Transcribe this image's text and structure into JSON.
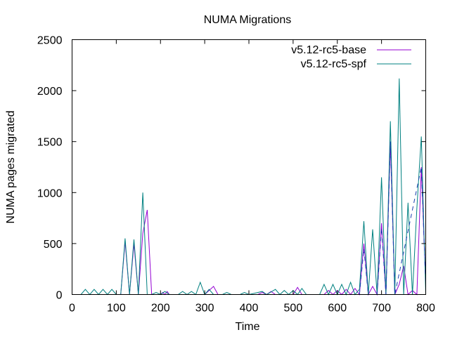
{
  "chart_data": {
    "type": "line",
    "title": "NUMA Migrations",
    "xlabel": "Time",
    "ylabel": "NUMA pages migrated",
    "xlim": [
      0,
      800
    ],
    "ylim": [
      0,
      2500
    ],
    "xticks": [
      0,
      100,
      200,
      300,
      400,
      500,
      600,
      700,
      800
    ],
    "yticks": [
      0,
      500,
      1000,
      1500,
      2000,
      2500
    ],
    "grid": false,
    "legend_position": "top-right",
    "series": [
      {
        "name": "v5.12-rc5-base",
        "color": "#9400d3",
        "dash": "solid",
        "points": [
          [
            0,
            0
          ],
          [
            110,
            0
          ],
          [
            120,
            520
          ],
          [
            130,
            0
          ],
          [
            140,
            500
          ],
          [
            150,
            0
          ],
          [
            160,
            600
          ],
          [
            170,
            830
          ],
          [
            180,
            0
          ],
          [
            200,
            0
          ],
          [
            205,
            20
          ],
          [
            210,
            0
          ],
          [
            215,
            30
          ],
          [
            220,
            0
          ],
          [
            300,
            0
          ],
          [
            320,
            80
          ],
          [
            330,
            0
          ],
          [
            420,
            0
          ],
          [
            430,
            20
          ],
          [
            440,
            0
          ],
          [
            450,
            30
          ],
          [
            460,
            0
          ],
          [
            500,
            0
          ],
          [
            510,
            70
          ],
          [
            520,
            0
          ],
          [
            570,
            0
          ],
          [
            580,
            40
          ],
          [
            590,
            0
          ],
          [
            600,
            40
          ],
          [
            610,
            0
          ],
          [
            620,
            50
          ],
          [
            630,
            0
          ],
          [
            640,
            60
          ],
          [
            650,
            0
          ],
          [
            660,
            500
          ],
          [
            670,
            0
          ],
          [
            680,
            80
          ],
          [
            690,
            0
          ],
          [
            700,
            700
          ],
          [
            710,
            0
          ],
          [
            720,
            1500
          ],
          [
            730,
            0
          ],
          [
            740,
            100
          ],
          [
            750,
            280
          ],
          [
            760,
            0
          ],
          [
            770,
            40
          ],
          [
            780,
            0
          ],
          [
            790,
            1250
          ],
          [
            800,
            100
          ]
        ]
      },
      {
        "name": "v5.12-rc5-spf",
        "color": "#008080",
        "dash": "solid",
        "points": [
          [
            0,
            0
          ],
          [
            20,
            0
          ],
          [
            30,
            50
          ],
          [
            40,
            0
          ],
          [
            50,
            50
          ],
          [
            60,
            0
          ],
          [
            70,
            50
          ],
          [
            80,
            0
          ],
          [
            90,
            50
          ],
          [
            100,
            0
          ],
          [
            110,
            0
          ],
          [
            120,
            550
          ],
          [
            130,
            0
          ],
          [
            140,
            540
          ],
          [
            150,
            0
          ],
          [
            160,
            1000
          ],
          [
            170,
            0
          ],
          [
            180,
            0
          ],
          [
            190,
            20
          ],
          [
            200,
            0
          ],
          [
            210,
            30
          ],
          [
            220,
            0
          ],
          [
            240,
            0
          ],
          [
            250,
            30
          ],
          [
            260,
            0
          ],
          [
            270,
            30
          ],
          [
            280,
            0
          ],
          [
            290,
            120
          ],
          [
            300,
            0
          ],
          [
            310,
            50
          ],
          [
            320,
            0
          ],
          [
            340,
            0
          ],
          [
            350,
            20
          ],
          [
            360,
            0
          ],
          [
            380,
            0
          ],
          [
            390,
            20
          ],
          [
            400,
            0
          ],
          [
            420,
            20
          ],
          [
            430,
            30
          ],
          [
            440,
            0
          ],
          [
            460,
            50
          ],
          [
            470,
            0
          ],
          [
            480,
            40
          ],
          [
            490,
            0
          ],
          [
            500,
            40
          ],
          [
            510,
            0
          ],
          [
            520,
            60
          ],
          [
            530,
            0
          ],
          [
            560,
            0
          ],
          [
            570,
            100
          ],
          [
            580,
            0
          ],
          [
            590,
            100
          ],
          [
            600,
            0
          ],
          [
            610,
            100
          ],
          [
            620,
            0
          ],
          [
            630,
            120
          ],
          [
            640,
            0
          ],
          [
            650,
            50
          ],
          [
            660,
            720
          ],
          [
            670,
            0
          ],
          [
            680,
            640
          ],
          [
            690,
            0
          ],
          [
            700,
            1150
          ],
          [
            710,
            0
          ],
          [
            720,
            1700
          ],
          [
            730,
            0
          ],
          [
            740,
            2120
          ],
          [
            750,
            0
          ],
          [
            760,
            900
          ],
          [
            770,
            0
          ],
          [
            780,
            850
          ],
          [
            790,
            1550
          ],
          [
            800,
            0
          ]
        ]
      },
      {
        "name": "",
        "color": "#1a3eb0",
        "dash": "dashed",
        "points": [
          [
            650,
            0
          ],
          [
            660,
            450
          ],
          [
            670,
            0
          ],
          [
            680,
            0
          ],
          [
            690,
            0
          ],
          [
            700,
            650
          ],
          [
            710,
            0
          ],
          [
            720,
            1500
          ],
          [
            730,
            0
          ],
          [
            790,
            1250
          ],
          [
            800,
            100
          ]
        ]
      }
    ]
  }
}
